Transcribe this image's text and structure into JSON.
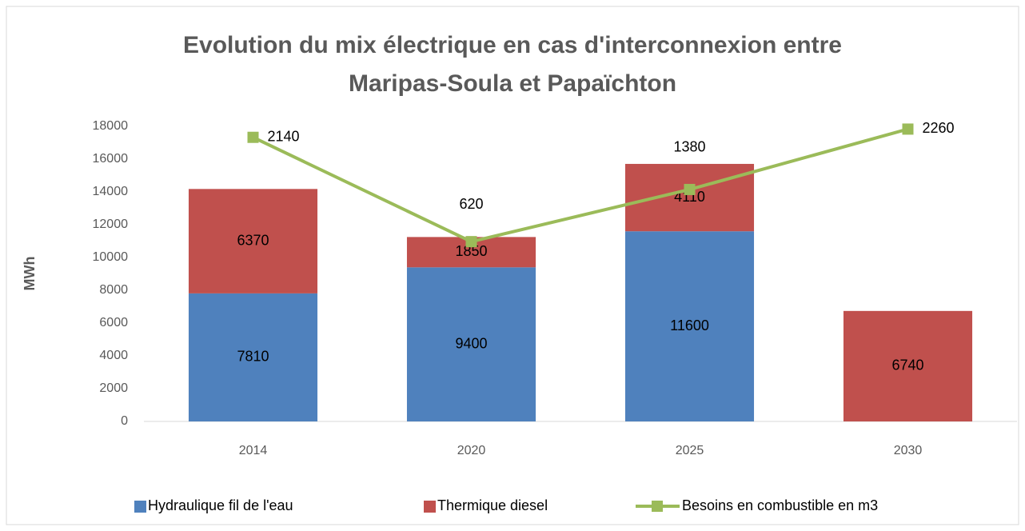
{
  "chart_data": {
    "type": "bar",
    "stacked": true,
    "title": [
      "Evolution du mix électrique en cas d'interconnexion entre",
      "Maripas-Soula et Papaïchton"
    ],
    "ylabel": "MWh",
    "categories": [
      "2014",
      "2020",
      "2025",
      "2030"
    ],
    "series": [
      {
        "name": "Hydraulique fil de l'eau",
        "color": "#4f81bd",
        "values": [
          7810,
          9400,
          11600,
          0
        ]
      },
      {
        "name": "Thermique diesel",
        "color": "#c0504d",
        "values": [
          6370,
          1850,
          4110,
          6740
        ]
      },
      {
        "name": "Besoins en combustible en m3",
        "color": "#9bbb59",
        "type": "line",
        "axis": "y2",
        "values": [
          2140,
          620,
          1380,
          2260
        ]
      }
    ],
    "ylim": [
      0,
      18000
    ],
    "yticks": [
      0,
      2000,
      4000,
      6000,
      8000,
      10000,
      12000,
      14000,
      16000,
      18000
    ],
    "y2lim": [
      -2000,
      2300
    ],
    "legend": "bottom"
  }
}
